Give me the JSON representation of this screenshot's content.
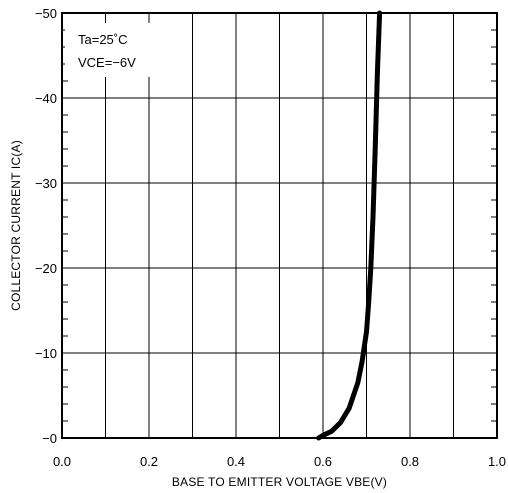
{
  "chart_data": {
    "type": "line",
    "title": "",
    "xlabel": "BASE TO EMITTER VOLTAGE VBE(V)",
    "ylabel": "COLLECTOR CURRENT IC(A)",
    "xlim": [
      0.0,
      1.0
    ],
    "ylim": [
      0,
      -50
    ],
    "x_ticks": [
      0.0,
      0.2,
      0.4,
      0.6,
      0.8,
      1.0
    ],
    "x_tick_labels": [
      "0.0",
      "0.2",
      "0.4",
      "0.6",
      "0.8",
      "1.0"
    ],
    "y_ticks": [
      0,
      -10,
      -20,
      -30,
      -40,
      -50
    ],
    "y_tick_labels": [
      "−0",
      "−10",
      "−20",
      "−30",
      "−40",
      "−50"
    ],
    "grid": true,
    "annotations": [
      "Ta=25˚C",
      "VCE=−6V"
    ],
    "series": [
      {
        "x": [
          0.59,
          0.6,
          0.62,
          0.64,
          0.66,
          0.68,
          0.69,
          0.7,
          0.705,
          0.71,
          0.715,
          0.72,
          0.725,
          0.73
        ],
        "y": [
          0,
          -0.3,
          -0.8,
          -1.8,
          -3.5,
          -6.5,
          -9,
          -12.5,
          -16,
          -20,
          -26,
          -34,
          -43,
          -50
        ]
      }
    ]
  }
}
